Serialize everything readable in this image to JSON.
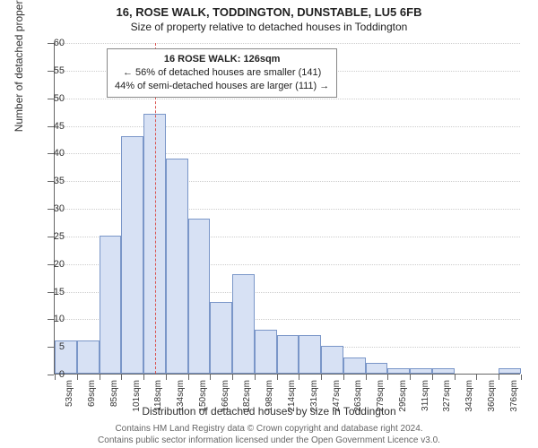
{
  "chart": {
    "type": "histogram",
    "title": "16, ROSE WALK, TODDINGTON, DUNSTABLE, LU5 6FB",
    "subtitle": "Size of property relative to detached houses in Toddington",
    "xaxis_title": "Distribution of detached houses by size in Toddington",
    "yaxis_title": "Number of detached properties",
    "background_color": "#ffffff",
    "grid_color": "#cccccc",
    "axis_color": "#666666",
    "bar_fill": "#d7e1f4",
    "bar_border": "#7a96c8",
    "title_fontsize": 13,
    "subtitle_fontsize": 12,
    "axis_label_fontsize": 12,
    "tick_fontsize": 11,
    "ylim": [
      0,
      60
    ],
    "ytick_step": 5,
    "yticks": [
      0,
      5,
      10,
      15,
      20,
      25,
      30,
      35,
      40,
      45,
      50,
      55,
      60
    ],
    "x_categories": [
      "53sqm",
      "69sqm",
      "85sqm",
      "101sqm",
      "118sqm",
      "134sqm",
      "150sqm",
      "166sqm",
      "182sqm",
      "198sqm",
      "214sqm",
      "231sqm",
      "247sqm",
      "263sqm",
      "279sqm",
      "295sqm",
      "311sqm",
      "327sqm",
      "343sqm",
      "360sqm",
      "376sqm"
    ],
    "values": [
      6,
      6,
      25,
      43,
      47,
      39,
      28,
      13,
      18,
      8,
      7,
      7,
      5,
      3,
      2,
      1,
      1,
      1,
      0,
      0,
      1
    ],
    "reference_line": {
      "value_sqm": 126,
      "color": "#d9534f",
      "dash": "4,3"
    },
    "annotation": {
      "line1": "16 ROSE WALK: 126sqm",
      "line2": "← 56% of detached houses are smaller (141)",
      "line3": "44% of semi-detached houses are larger (111) →"
    },
    "attribution": {
      "line1": "Contains HM Land Registry data © Crown copyright and database right 2024.",
      "line2": "Contains public sector information licensed under the Open Government Licence v3.0."
    }
  }
}
